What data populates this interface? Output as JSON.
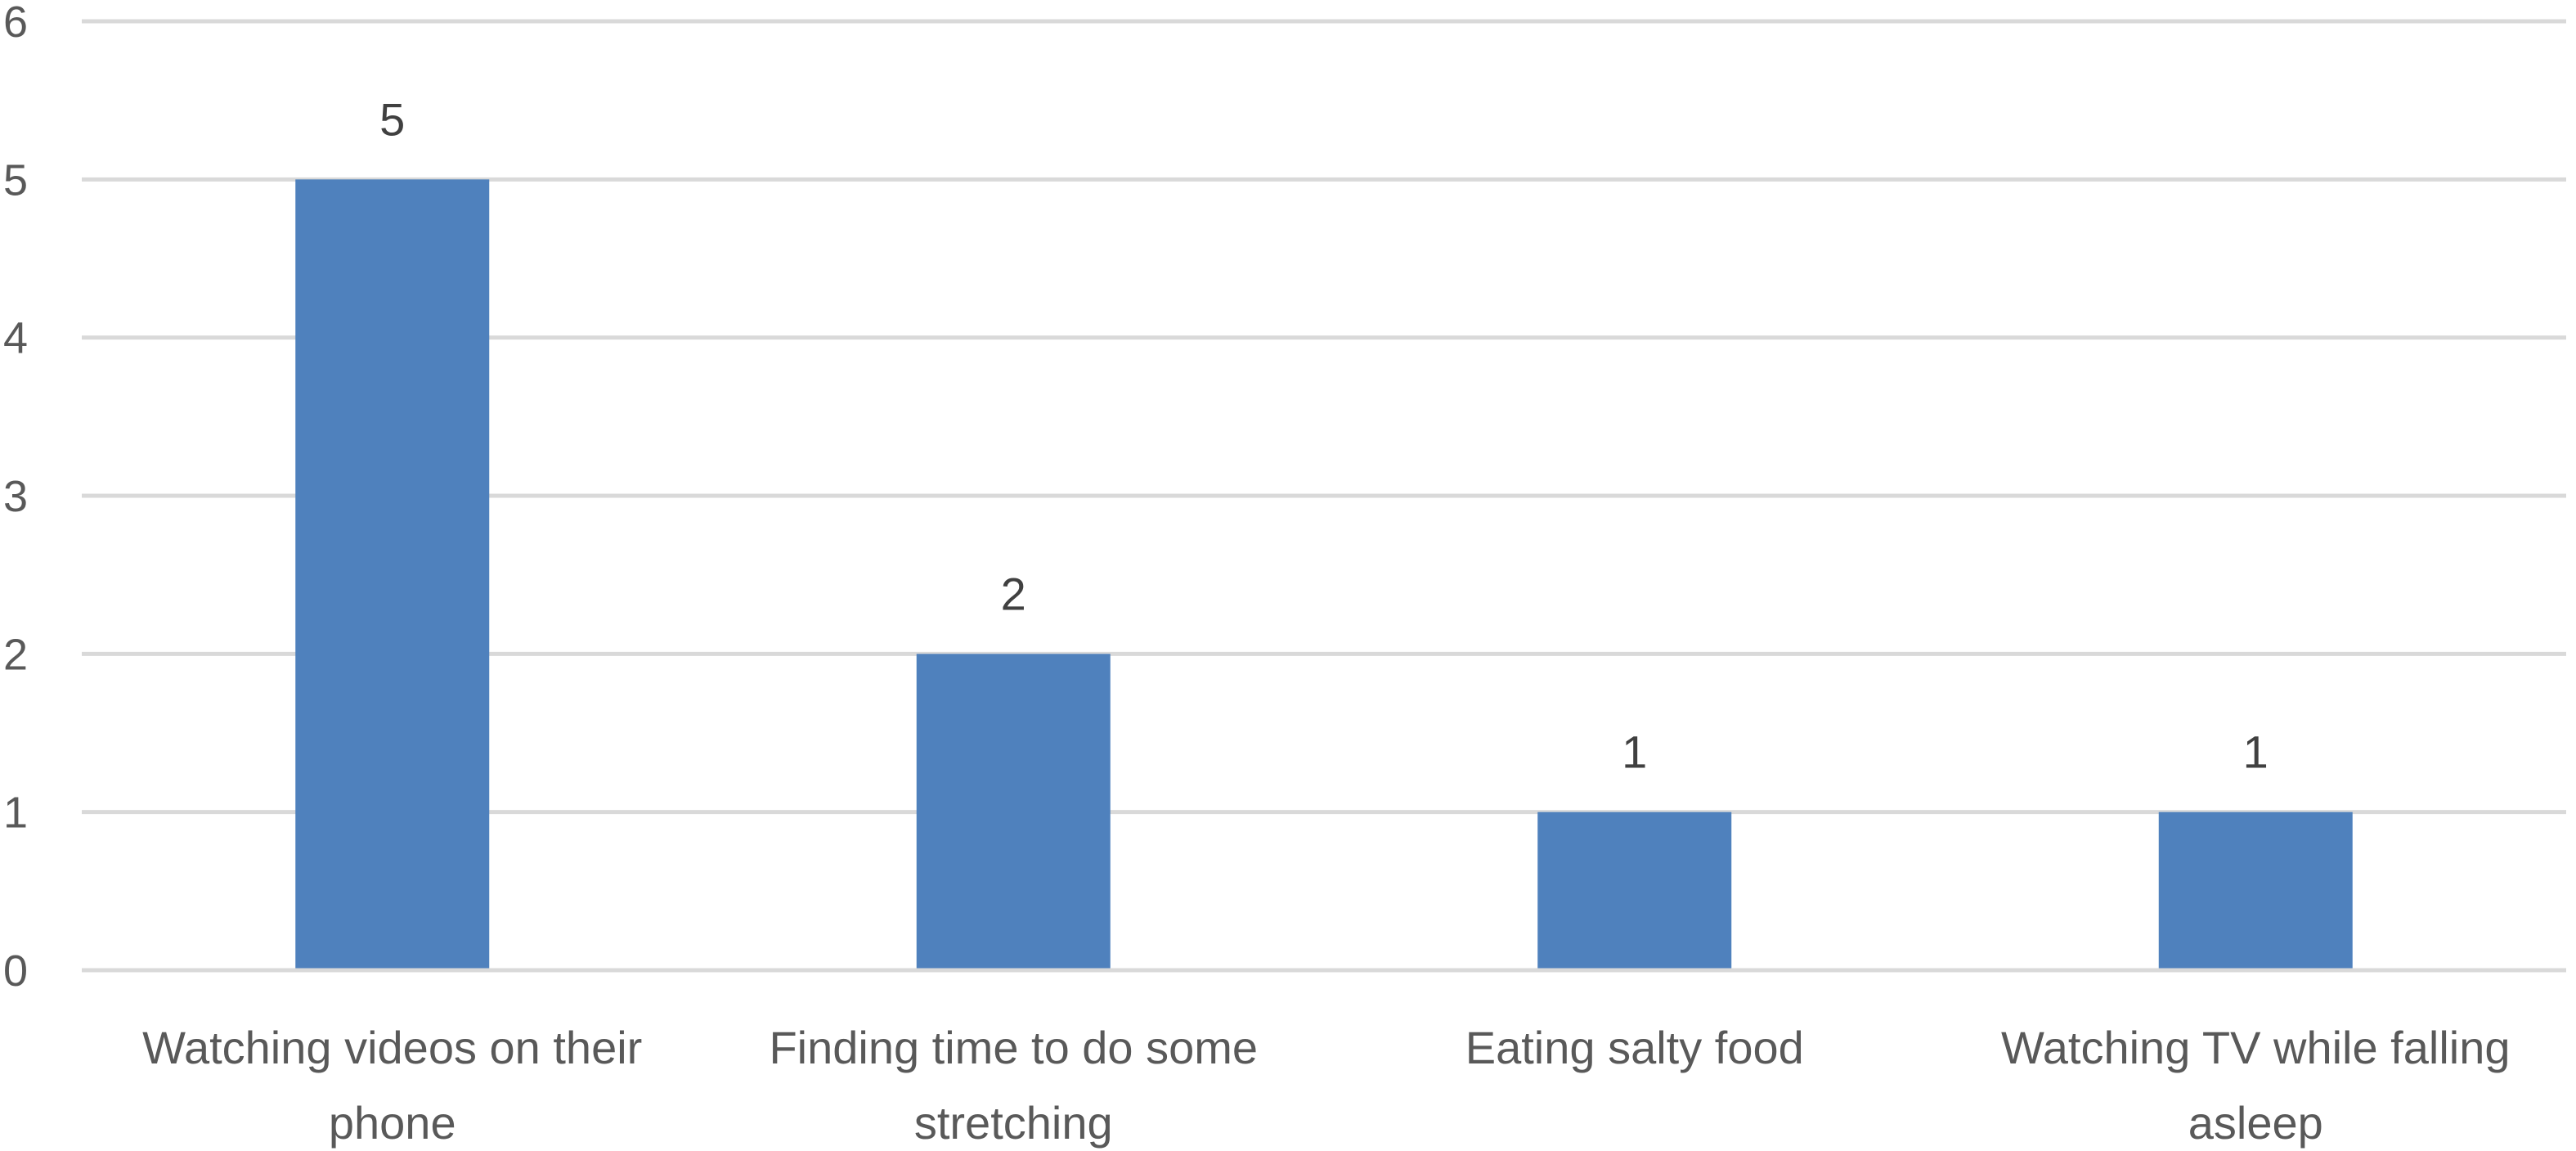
{
  "chart_data": {
    "type": "bar",
    "title": "",
    "xlabel": "",
    "ylabel": "",
    "categories": [
      [
        "Watching videos on their",
        "phone"
      ],
      [
        "Finding time to do some",
        "stretching"
      ],
      [
        "Eating salty food"
      ],
      [
        "Watching TV while falling",
        "asleep"
      ]
    ],
    "values": [
      5,
      2,
      1,
      1
    ],
    "data_labels": [
      "5",
      "2",
      "1",
      "1"
    ],
    "ylim": [
      0,
      6
    ],
    "yticks": [
      "0",
      "1",
      "2",
      "3",
      "4",
      "5",
      "6"
    ],
    "grid": true,
    "legend": "none",
    "bar_color": "#4f81bd"
  }
}
